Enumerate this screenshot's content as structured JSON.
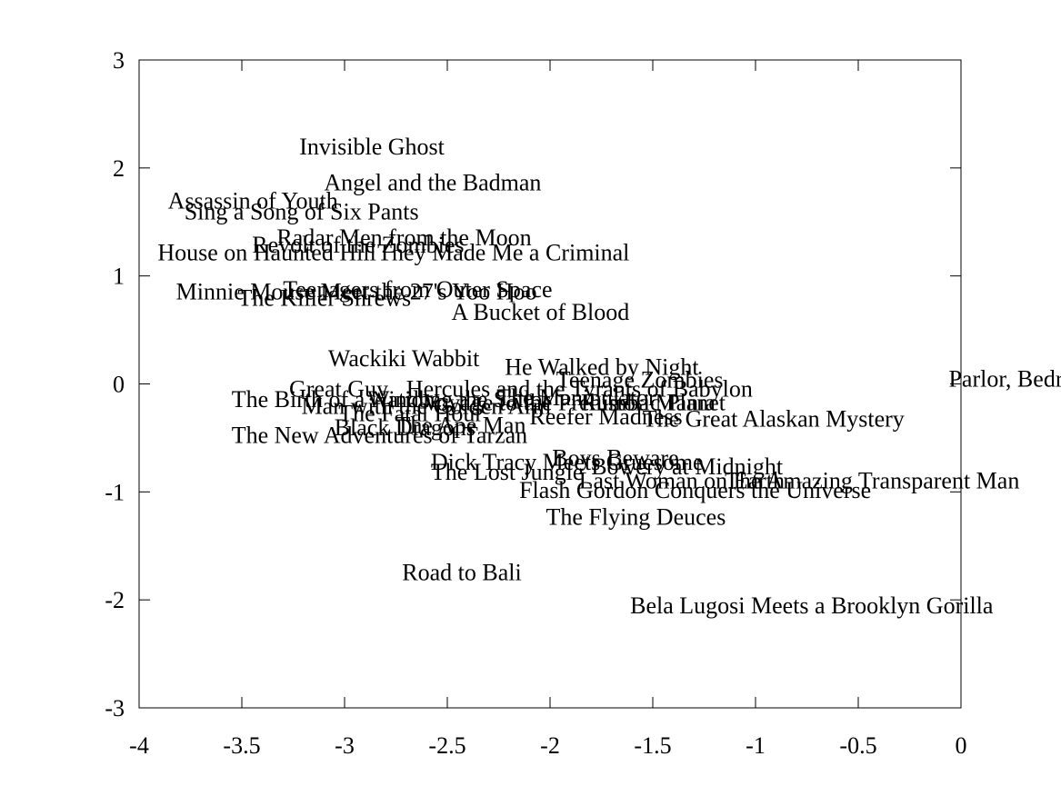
{
  "chart_data": {
    "type": "scatter",
    "title": "",
    "xlabel": "",
    "ylabel": "",
    "xlim": [
      -4,
      0
    ],
    "ylim": [
      -3,
      3
    ],
    "x_ticks": [
      -4,
      -3.5,
      -3,
      -2.5,
      -2,
      -1.5,
      -1,
      -0.5,
      0
    ],
    "y_ticks": [
      -3,
      -2,
      -1,
      0,
      1,
      2,
      3
    ],
    "x_tick_labels": [
      "-4",
      "-3.5",
      "-3",
      "-2.5",
      "-2",
      "-1.5",
      "-1",
      "-0.5",
      "0"
    ],
    "y_tick_labels": [
      "-3",
      "-2",
      "-1",
      "0",
      "1",
      "2",
      "3"
    ],
    "grid": false,
    "marker": "text-labels",
    "points": [
      {
        "label": "Invisible Ghost",
        "x": -3.22,
        "y": 2.2
      },
      {
        "label": "Angel and the Badman",
        "x": -3.1,
        "y": 1.87
      },
      {
        "label": "Assassin of Youth",
        "x": -3.86,
        "y": 1.7
      },
      {
        "label": "Sing a Song of Six Pants",
        "x": -3.78,
        "y": 1.6
      },
      {
        "label": "Radar Men from the Moon",
        "x": -3.33,
        "y": 1.36
      },
      {
        "label": "Revolt of the Zombies",
        "x": -3.45,
        "y": 1.29
      },
      {
        "label": "House on Haunted Hill",
        "x": -3.91,
        "y": 1.22
      },
      {
        "label": "They Made Me a Criminal",
        "x": -2.84,
        "y": 1.22
      },
      {
        "label": "Teenagers from Outer Space",
        "x": -3.3,
        "y": 0.88
      },
      {
        "label": "Minnie Mouse Meet the 27's Yoo Hoo",
        "x": -3.82,
        "y": 0.86
      },
      {
        "label": "The Killer Shrews",
        "x": -3.52,
        "y": 0.8
      },
      {
        "label": "A Bucket of Blood",
        "x": -2.48,
        "y": 0.67
      },
      {
        "label": "Wackiki Wabbit",
        "x": -3.08,
        "y": 0.24
      },
      {
        "label": "He Walked by Night",
        "x": -2.22,
        "y": 0.16
      },
      {
        "label": "Teenage Zombies",
        "x": -1.97,
        "y": 0.04
      },
      {
        "label": "Great Guy",
        "x": -3.27,
        "y": -0.04
      },
      {
        "label": "Hercules and the Tyrants of Babylon",
        "x": -2.7,
        "y": -0.04
      },
      {
        "label": "The Birth of a Nation",
        "x": -3.55,
        "y": -0.14
      },
      {
        "label": "The Manipulator",
        "x": -2.26,
        "y": -0.12
      },
      {
        "label": "Windbag the Sailor",
        "x": -2.89,
        "y": -0.14
      },
      {
        "label": "Man with the Golden Arm",
        "x": -3.21,
        "y": -0.2
      },
      {
        "label": "Voyage to the Prehistoric Planet",
        "x": -2.62,
        "y": -0.17
      },
      {
        "label": "Rumba Mania",
        "x": -1.85,
        "y": -0.17
      },
      {
        "label": "The Fatal Hour",
        "x": -3.03,
        "y": -0.27
      },
      {
        "label": "Reefer Madness",
        "x": -2.1,
        "y": -0.3
      },
      {
        "label": "The Great Alaskan Mystery",
        "x": -1.55,
        "y": -0.32
      },
      {
        "label": "Black Dragons",
        "x": -3.05,
        "y": -0.4
      },
      {
        "label": "The Ape Man",
        "x": -2.75,
        "y": -0.38
      },
      {
        "label": "The New Adventures of Tarzan",
        "x": -3.55,
        "y": -0.47
      },
      {
        "label": "Dick Tracy Meets Gruesome",
        "x": -2.58,
        "y": -0.72
      },
      {
        "label": "Boys Beware",
        "x": -1.99,
        "y": -0.68
      },
      {
        "label": "Bowery at Midnight",
        "x": -1.8,
        "y": -0.76
      },
      {
        "label": "The Lost Jungle",
        "x": -2.58,
        "y": -0.81
      },
      {
        "label": "Last Woman on Earth",
        "x": -1.86,
        "y": -0.89
      },
      {
        "label": "The Amazing Transparent Man",
        "x": -1.15,
        "y": -0.89
      },
      {
        "label": "Flash Gordon Conquers the Universe",
        "x": -2.15,
        "y": -0.98
      },
      {
        "label": "The Flying Deuces",
        "x": -2.02,
        "y": -1.23
      },
      {
        "label": "Road to Bali",
        "x": -2.72,
        "y": -1.74
      },
      {
        "label": "Bela Lugosi Meets a Brooklyn Gorilla",
        "x": -1.61,
        "y": -2.05
      },
      {
        "label": "Parlor, Bedroom and Bath",
        "x": -0.06,
        "y": 0.05
      }
    ]
  }
}
